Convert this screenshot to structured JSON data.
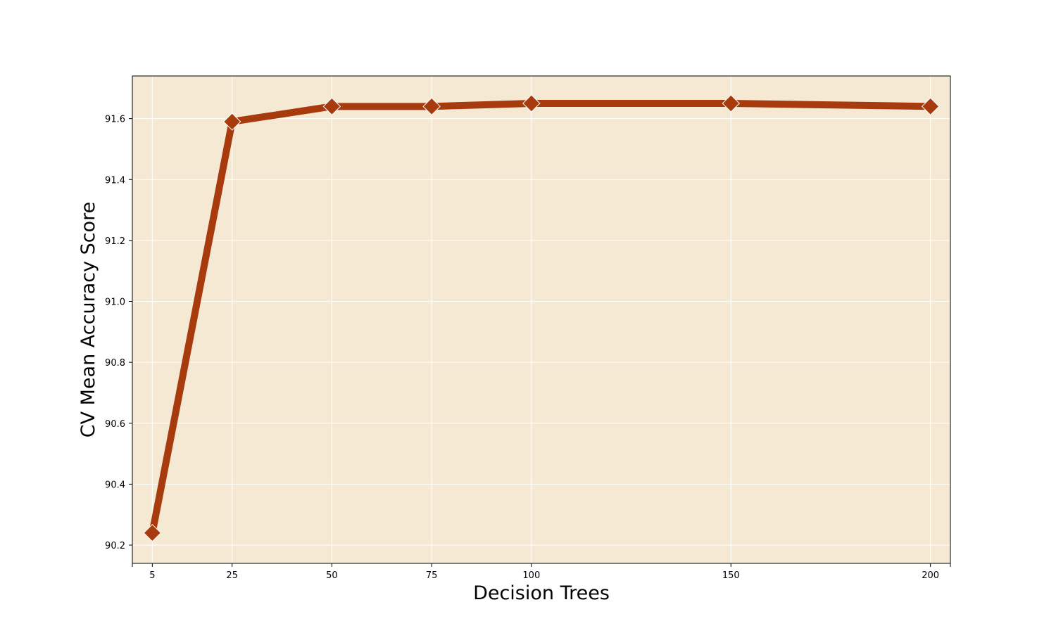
{
  "chart_data": {
    "type": "line",
    "title": "",
    "xlabel": "Decision Trees",
    "ylabel": "CV Mean Accuracy Score",
    "x": [
      5,
      25,
      50,
      75,
      100,
      150,
      200
    ],
    "series": [
      {
        "values": [
          90.24,
          91.59,
          91.64,
          91.64,
          91.65,
          91.65,
          91.64
        ]
      }
    ],
    "xticks": [
      5,
      25,
      50,
      75,
      100,
      150,
      200
    ],
    "xtick_labels": [
      "5",
      "25",
      "50",
      "75",
      "100",
      "150",
      "200"
    ],
    "yticks": [
      90.2,
      90.4,
      90.6,
      90.8,
      91.0,
      91.2,
      91.4,
      91.6
    ],
    "ytick_labels": [
      "90.2",
      "90.4",
      "90.6",
      "90.8",
      "91.0",
      "91.2",
      "91.4",
      "91.6"
    ],
    "xlim": [
      0,
      205
    ],
    "ylim": [
      90.14,
      91.74
    ],
    "grid": true,
    "marker": "diamond",
    "colors": {
      "line": "#a83b0e",
      "marker": "#a83b0e",
      "marker_edge": "#ffffff",
      "plot_background": "#f5e9d4",
      "grid": "#ffffff"
    }
  }
}
